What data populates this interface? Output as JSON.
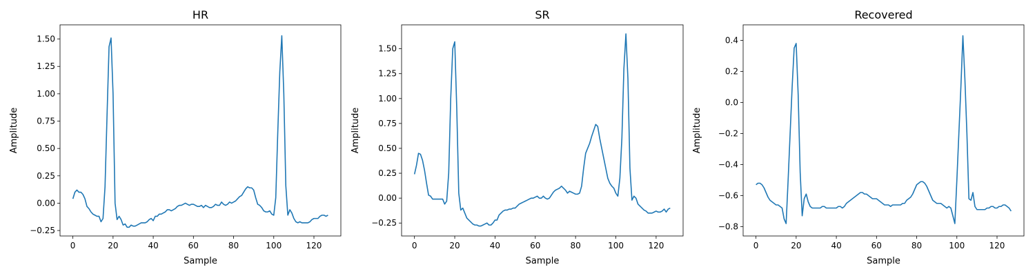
{
  "chart_data": [
    {
      "type": "line",
      "title": "HR",
      "xlabel": "Sample",
      "ylabel": "Amplitude",
      "xlim": [
        -6.4,
        133.4
      ],
      "ylim": [
        -0.3,
        1.63
      ],
      "xticks": [
        0,
        20,
        40,
        60,
        80,
        100,
        120
      ],
      "yticks": [
        -0.25,
        0.0,
        0.25,
        0.5,
        0.75,
        1.0,
        1.25,
        1.5
      ],
      "ytick_labels": [
        "−0.25",
        "0.00",
        "0.25",
        "0.50",
        "0.75",
        "1.00",
        "1.25",
        "1.50"
      ],
      "series": [
        {
          "color": "#1f77b4",
          "x": [
            0,
            1,
            2,
            3,
            4,
            5,
            6,
            7,
            8,
            9,
            10,
            11,
            12,
            13,
            14,
            15,
            16,
            17,
            18,
            19,
            20,
            21,
            22,
            23,
            24,
            25,
            26,
            27,
            28,
            29,
            30,
            31,
            32,
            33,
            34,
            35,
            36,
            37,
            38,
            39,
            40,
            41,
            42,
            43,
            44,
            45,
            46,
            47,
            48,
            49,
            50,
            51,
            52,
            53,
            54,
            55,
            56,
            57,
            58,
            59,
            60,
            61,
            62,
            63,
            64,
            65,
            66,
            67,
            68,
            69,
            70,
            71,
            72,
            73,
            74,
            75,
            76,
            77,
            78,
            79,
            80,
            81,
            82,
            83,
            84,
            85,
            86,
            87,
            88,
            89,
            90,
            91,
            92,
            93,
            94,
            95,
            96,
            97,
            98,
            99,
            100,
            101,
            102,
            103,
            104,
            105,
            106,
            107,
            108,
            109,
            110,
            111,
            112,
            113,
            114,
            115,
            116,
            117,
            118,
            119,
            120,
            121,
            122,
            123,
            124,
            125,
            126,
            127
          ],
          "y": [
            0.04,
            0.1,
            0.12,
            0.1,
            0.1,
            0.08,
            0.04,
            -0.03,
            -0.05,
            -0.08,
            -0.1,
            -0.11,
            -0.12,
            -0.12,
            -0.17,
            -0.14,
            0.15,
            0.8,
            1.43,
            1.51,
            1.0,
            0.0,
            -0.15,
            -0.12,
            -0.15,
            -0.2,
            -0.19,
            -0.22,
            -0.22,
            -0.2,
            -0.21,
            -0.21,
            -0.2,
            -0.19,
            -0.18,
            -0.18,
            -0.18,
            -0.17,
            -0.15,
            -0.14,
            -0.16,
            -0.12,
            -0.12,
            -0.1,
            -0.1,
            -0.09,
            -0.08,
            -0.06,
            -0.06,
            -0.07,
            -0.06,
            -0.05,
            -0.03,
            -0.02,
            -0.02,
            -0.01,
            0.0,
            -0.01,
            -0.02,
            -0.01,
            -0.01,
            -0.02,
            -0.03,
            -0.03,
            -0.02,
            -0.04,
            -0.02,
            -0.03,
            -0.04,
            -0.04,
            -0.03,
            -0.01,
            -0.02,
            -0.02,
            0.01,
            -0.01,
            -0.02,
            -0.01,
            0.01,
            0.0,
            0.01,
            0.02,
            0.04,
            0.06,
            0.07,
            0.1,
            0.13,
            0.15,
            0.14,
            0.14,
            0.12,
            0.05,
            -0.01,
            -0.02,
            -0.04,
            -0.07,
            -0.08,
            -0.08,
            -0.07,
            -0.1,
            -0.11,
            0.05,
            0.65,
            1.2,
            1.53,
            1.0,
            0.16,
            -0.11,
            -0.06,
            -0.09,
            -0.14,
            -0.17,
            -0.18,
            -0.17,
            -0.18,
            -0.18,
            -0.18,
            -0.18,
            -0.17,
            -0.15,
            -0.14,
            -0.14,
            -0.14,
            -0.12,
            -0.11,
            -0.11,
            -0.12,
            -0.11
          ]
        }
      ]
    },
    {
      "type": "line",
      "title": "SR",
      "xlabel": "Sample",
      "ylabel": "Amplitude",
      "xlim": [
        -6.4,
        133.4
      ],
      "ylim": [
        -0.38,
        1.74
      ],
      "xticks": [
        0,
        20,
        40,
        60,
        80,
        100,
        120
      ],
      "yticks": [
        -0.25,
        0.0,
        0.25,
        0.5,
        0.75,
        1.0,
        1.25,
        1.5
      ],
      "ytick_labels": [
        "−0.25",
        "0.00",
        "0.25",
        "0.50",
        "0.75",
        "1.00",
        "1.25",
        "1.50"
      ],
      "series": [
        {
          "color": "#1f77b4",
          "x": [
            0,
            1,
            2,
            3,
            4,
            5,
            6,
            7,
            8,
            9,
            10,
            11,
            12,
            13,
            14,
            15,
            16,
            17,
            18,
            19,
            20,
            21,
            22,
            23,
            24,
            25,
            26,
            27,
            28,
            29,
            30,
            31,
            32,
            33,
            34,
            35,
            36,
            37,
            38,
            39,
            40,
            41,
            42,
            43,
            44,
            45,
            46,
            47,
            48,
            49,
            50,
            51,
            52,
            53,
            54,
            55,
            56,
            57,
            58,
            59,
            60,
            61,
            62,
            63,
            64,
            65,
            66,
            67,
            68,
            69,
            70,
            71,
            72,
            73,
            74,
            75,
            76,
            77,
            78,
            79,
            80,
            81,
            82,
            83,
            84,
            85,
            86,
            87,
            88,
            89,
            90,
            91,
            92,
            93,
            94,
            95,
            96,
            97,
            98,
            99,
            100,
            101,
            102,
            103,
            104,
            105,
            106,
            107,
            108,
            109,
            110,
            111,
            112,
            113,
            114,
            115,
            116,
            117,
            118,
            119,
            120,
            121,
            122,
            123,
            124,
            125,
            126,
            127
          ],
          "y": [
            0.24,
            0.33,
            0.45,
            0.44,
            0.38,
            0.28,
            0.15,
            0.03,
            0.02,
            -0.01,
            -0.01,
            -0.01,
            -0.01,
            -0.01,
            -0.01,
            -0.06,
            -0.03,
            0.25,
            1.0,
            1.5,
            1.57,
            0.9,
            0.05,
            -0.12,
            -0.1,
            -0.15,
            -0.2,
            -0.22,
            -0.24,
            -0.26,
            -0.27,
            -0.27,
            -0.28,
            -0.28,
            -0.27,
            -0.26,
            -0.25,
            -0.27,
            -0.27,
            -0.25,
            -0.22,
            -0.22,
            -0.17,
            -0.15,
            -0.13,
            -0.12,
            -0.12,
            -0.11,
            -0.11,
            -0.1,
            -0.1,
            -0.08,
            -0.06,
            -0.05,
            -0.04,
            -0.03,
            -0.02,
            -0.01,
            0.0,
            0.0,
            0.01,
            0.02,
            0.0,
            0.0,
            0.02,
            0.0,
            -0.01,
            0.0,
            0.03,
            0.06,
            0.08,
            0.09,
            0.1,
            0.12,
            0.1,
            0.08,
            0.05,
            0.07,
            0.06,
            0.05,
            0.04,
            0.04,
            0.05,
            0.12,
            0.3,
            0.45,
            0.5,
            0.55,
            0.62,
            0.68,
            0.74,
            0.72,
            0.6,
            0.5,
            0.4,
            0.3,
            0.2,
            0.15,
            0.12,
            0.1,
            0.05,
            0.02,
            0.2,
            0.6,
            1.3,
            1.65,
            1.2,
            0.3,
            -0.02,
            0.02,
            0.0,
            -0.06,
            -0.08,
            -0.1,
            -0.12,
            -0.13,
            -0.15,
            -0.15,
            -0.15,
            -0.14,
            -0.13,
            -0.14,
            -0.14,
            -0.13,
            -0.11,
            -0.14,
            -0.11,
            -0.1
          ]
        }
      ]
    },
    {
      "type": "line",
      "title": "Recovered",
      "xlabel": "Sample",
      "ylabel": "Amplitude",
      "xlim": [
        -6.4,
        133.4
      ],
      "ylim": [
        -0.86,
        0.5
      ],
      "xticks": [
        0,
        20,
        40,
        60,
        80,
        100,
        120
      ],
      "yticks": [
        -0.8,
        -0.6,
        -0.4,
        -0.2,
        0.0,
        0.2,
        0.4
      ],
      "ytick_labels": [
        "−0.8",
        "−0.6",
        "−0.4",
        "−0.2",
        "0.0",
        "0.2",
        "0.4"
      ],
      "series": [
        {
          "color": "#1f77b4",
          "x": [
            0,
            1,
            2,
            3,
            4,
            5,
            6,
            7,
            8,
            9,
            10,
            11,
            12,
            13,
            14,
            15,
            16,
            17,
            18,
            19,
            20,
            21,
            22,
            23,
            24,
            25,
            26,
            27,
            28,
            29,
            30,
            31,
            32,
            33,
            34,
            35,
            36,
            37,
            38,
            39,
            40,
            41,
            42,
            43,
            44,
            45,
            46,
            47,
            48,
            49,
            50,
            51,
            52,
            53,
            54,
            55,
            56,
            57,
            58,
            59,
            60,
            61,
            62,
            63,
            64,
            65,
            66,
            67,
            68,
            69,
            70,
            71,
            72,
            73,
            74,
            75,
            76,
            77,
            78,
            79,
            80,
            81,
            82,
            83,
            84,
            85,
            86,
            87,
            88,
            89,
            90,
            91,
            92,
            93,
            94,
            95,
            96,
            97,
            98,
            99,
            100,
            101,
            102,
            103,
            104,
            105,
            106,
            107,
            108,
            109,
            110,
            111,
            112,
            113,
            114,
            115,
            116,
            117,
            118,
            119,
            120,
            121,
            122,
            123,
            124,
            125,
            126,
            127
          ],
          "y": [
            -0.53,
            -0.52,
            -0.52,
            -0.53,
            -0.55,
            -0.58,
            -0.61,
            -0.63,
            -0.64,
            -0.65,
            -0.66,
            -0.66,
            -0.67,
            -0.68,
            -0.75,
            -0.78,
            -0.5,
            -0.2,
            0.1,
            0.35,
            0.38,
            0.05,
            -0.45,
            -0.73,
            -0.62,
            -0.59,
            -0.64,
            -0.67,
            -0.68,
            -0.68,
            -0.68,
            -0.68,
            -0.68,
            -0.67,
            -0.67,
            -0.68,
            -0.68,
            -0.68,
            -0.68,
            -0.68,
            -0.68,
            -0.67,
            -0.67,
            -0.68,
            -0.67,
            -0.65,
            -0.64,
            -0.63,
            -0.62,
            -0.61,
            -0.6,
            -0.59,
            -0.58,
            -0.58,
            -0.59,
            -0.59,
            -0.6,
            -0.61,
            -0.62,
            -0.62,
            -0.62,
            -0.63,
            -0.64,
            -0.65,
            -0.66,
            -0.66,
            -0.66,
            -0.67,
            -0.66,
            -0.66,
            -0.66,
            -0.66,
            -0.66,
            -0.65,
            -0.65,
            -0.63,
            -0.62,
            -0.61,
            -0.59,
            -0.56,
            -0.53,
            -0.52,
            -0.51,
            -0.51,
            -0.52,
            -0.54,
            -0.57,
            -0.6,
            -0.63,
            -0.64,
            -0.65,
            -0.65,
            -0.65,
            -0.66,
            -0.67,
            -0.68,
            -0.67,
            -0.68,
            -0.73,
            -0.78,
            -0.5,
            -0.2,
            0.1,
            0.43,
            0.15,
            -0.2,
            -0.62,
            -0.63,
            -0.58,
            -0.67,
            -0.69,
            -0.69,
            -0.69,
            -0.69,
            -0.69,
            -0.68,
            -0.68,
            -0.67,
            -0.67,
            -0.68,
            -0.68,
            -0.67,
            -0.67,
            -0.66,
            -0.66,
            -0.67,
            -0.68,
            -0.7
          ]
        }
      ]
    }
  ]
}
